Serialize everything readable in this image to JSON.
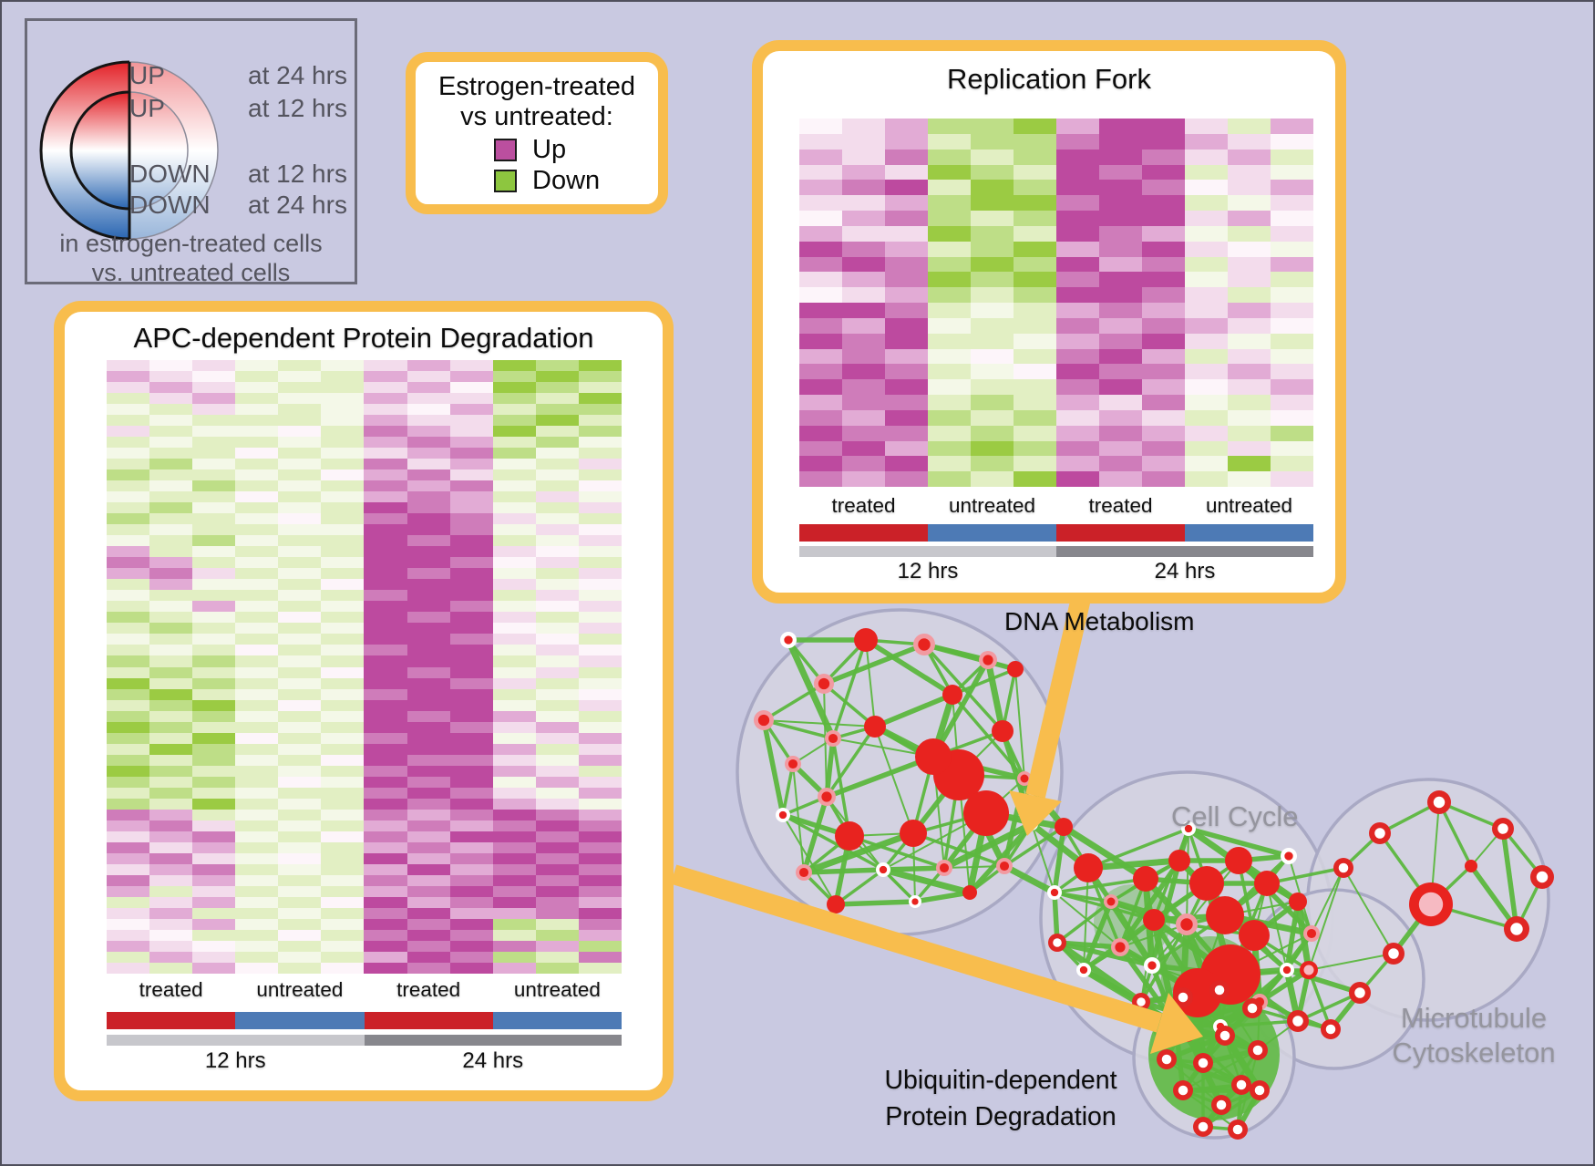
{
  "colors": {
    "background": "#c9c9e1",
    "accent_orange": "#f8bd4d",
    "treated_bar": "#cb2128",
    "untreated_bar": "#4d7ab5",
    "bar_12hrs": "#c7c7cc",
    "bar_24hrs": "#87878d",
    "up_magenta": "#bb4f9f",
    "down_green": "#8dc63f",
    "edge_green": "#5cb83f",
    "node_red": "#e8231f",
    "node_pink_ring": "#f29aa1",
    "node_white_ring": "#ffffff",
    "node_pink_core": "#f6bac2",
    "cluster_fill": "#d5d4e1",
    "cluster_stroke": "#a9a9c4",
    "gradient_red": "#e32228",
    "gradient_white": "#ffffff",
    "gradient_blue": "#2a66b2"
  },
  "ring_legend": {
    "rows": [
      {
        "word": "UP",
        "time": "at 24 hrs"
      },
      {
        "word": "UP",
        "time": "at 12 hrs"
      },
      {
        "word": "DOWN",
        "time": "at 12 hrs"
      },
      {
        "word": "DOWN",
        "time": "at 24 hrs"
      }
    ],
    "caption_line1": "in estrogen-treated cells",
    "caption_line2": "vs. untreated cells"
  },
  "color_legend": {
    "title_line1": "Estrogen-treated",
    "title_line2": "vs untreated:",
    "items": [
      {
        "label": "Up",
        "color": "#bb4f9f"
      },
      {
        "label": "Down",
        "color": "#8dc63f"
      }
    ]
  },
  "panels": [
    {
      "id": "replication_fork",
      "title": "Replication Fork",
      "group_labels": [
        "treated",
        "untreated",
        "treated",
        "untreated"
      ],
      "time_labels": [
        "12 hrs",
        "24 hrs"
      ]
    },
    {
      "id": "apc",
      "title": "APC-dependent Protein Degradation",
      "group_labels": [
        "treated",
        "untreated",
        "treated",
        "untreated"
      ],
      "time_labels": [
        "12 hrs",
        "24 hrs"
      ]
    }
  ],
  "network": {
    "labels": {
      "dna": "DNA Metabolism",
      "cell_cycle": "Cell Cycle",
      "microtubule_line1": "Microtubule",
      "microtubule_line2": "Cytoskeleton",
      "ubiquitin_line1": "Ubiquitin-dependent",
      "ubiquitin_line2": "Protein Degradation"
    }
  },
  "chart_data": [
    {
      "type": "heatmap",
      "title": "Replication Fork",
      "column_groups": [
        "treated 12 hrs",
        "untreated 12 hrs",
        "treated 24 hrs",
        "untreated 24 hrs"
      ],
      "n_cols": 12,
      "n_rows": 24,
      "legend": {
        "magenta": "Up in estrogen-treated vs untreated",
        "green": "Down in estrogen-treated vs untreated"
      },
      "palette": {
        "M": "#bd4a9f",
        "m": "#cf7cba",
        "p": "#e2abd5",
        "q": "#f3dcec",
        "w": "#fdf5fa",
        "v": "#f4f8e8",
        "g": "#e2efc3",
        "G": "#bede87",
        "D": "#9bcb43"
      },
      "cells": [
        "wqpGGDpMMqgp",
        "qqpgGGmMMpqw",
        "pqmGgGMMmqpg",
        "qpqDGgMmMgqv",
        "pmMgDGMMmwqp",
        "qqpGDDmMMgvq",
        "wpmGgGMMMqpw",
        "pqqDGgMmpvgq",
        "MmpgGDpmMqwv",
        "mMmGDGMpmgqp",
        "qpmDGDmMMvqg",
        "wqpGgGMMmqgv",
        "MMmgvgpmpqpq",
        "mpMvggmpmpqw",
        "MmMggvpmMqvg",
        "pmpvwgmMpgqv",
        "mMmgvwMmmqpq",
        "MmMvggmMpwqp",
        "pmmgGgpqmvgq",
        "mpMGgGqpqgvw",
        "MmmgGgpmpqgG",
        "mMpGDGmpmgqv",
        "MmMgGgpmpvDg",
        "mpmGgDMpmgvq"
      ]
    },
    {
      "type": "heatmap",
      "title": "APC-dependent Protein Degradation",
      "column_groups": [
        "treated 12 hrs",
        "untreated 12 hrs",
        "treated 24 hrs",
        "untreated 24 hrs"
      ],
      "n_cols": 12,
      "n_rows": 56,
      "legend": {
        "magenta": "Up in estrogen-treated vs untreated",
        "green": "Down in estrogen-treated vs untreated"
      },
      "palette": {
        "M": "#bd4a9f",
        "m": "#cf7cba",
        "p": "#e2abd5",
        "q": "#f3dcec",
        "w": "#fdf5fa",
        "v": "#f4f8e8",
        "g": "#e2efc3",
        "G": "#bede87",
        "D": "#9bcb43"
      },
      "cells": [
        "qwqvgvqpqDGD",
        "pqwgvgpqpGDG",
        "qpqvggqpwDGg",
        "gqpgvvpqqGgD",
        "vgqvgvqwpgGG",
        "gvgggvpqqGDg",
        "qgvvwgmpqDgG",
        "gvggvgpmpgGv",
        "vggwgvqpmGvg",
        "gGvgvgmqpvgq",
        "Gggvgwpmqgvg",
        "gvGgvgmpmvgw",
        "vggwgvpmpgqv",
        "gGvgvgMmpvgq",
        "GggvwgmMmqvg",
        "gvggvvMMmvqw",
        "vgGvggMmMgvq",
        "pgvgvgMMMqwv",
        "mpgvgvMMmwqg",
        "pmqgvgMmMvgq",
        "gpvvgwMMMqvw",
        "vgggvgmMMgqv",
        "gvpvgvMMmvwq",
        "GgvgwgMmMqgv",
        "gGgvgvMMMwvq",
        "vgvgvgMMmqwg",
        "gvgwgvmMMvqw",
        "GgGgvgMMMgvq",
        "gGgvgwMmMvqg",
        "DgGgvgMMmqgv",
        "GDgvgvmMMgvw",
        "gGDgwgMMMvgq",
        "GgGvgvMmMpvg",
        "DGggvgMMmqpv",
        "GgDwgvmMMvqp",
        "gDGgvgMMMpgq",
        "GgGvgwMmmqvp",
        "DGggvgmMMpqg",
        "GgGgwvMmMvpq",
        "gGgvggmMmqvp",
        "GgDgvgMmMpqv",
        "mpgvgvmpmMmp",
        "pmqgvgpmpmMm",
        "qpmvgwmpMMmM",
        "mqpgvgpmpmMm",
        "pmqvwgMpmMmM",
        "qpmgvgpMpmMm",
        "mqpvgvmpmMmM",
        "pgqgvgpmMmMm",
        "gqpvgwMpmMmp",
        "qpggvgmMppmM",
        "wqpvgvMmMGgm",
        "qwggwgmMmgGp",
        "pqwvgvMmMmpG",
        "gpqgvgpMmGgm",
        "qgpwgwMmMpGg"
      ]
    },
    {
      "type": "network",
      "clusters": [
        "DNA Metabolism",
        "Cell Cycle",
        "Microtubule Cytoskeleton",
        "Ubiquitin-dependent Protein Degradation"
      ],
      "node_meaning": "genes/gene sets (red, with pink or white rings)",
      "edge_meaning": "shared-member overlap (green)"
    }
  ]
}
